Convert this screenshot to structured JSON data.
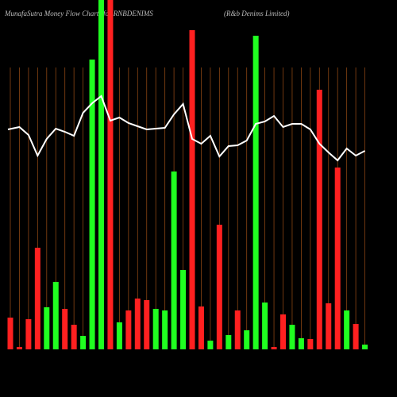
{
  "chart_data": {
    "type": "bar",
    "title": "MunafaSutra  Money Flow  Charts for RNBDENIMS",
    "subtitle": "(R&b Denims Limited)",
    "ylim": [
      0,
      440
    ],
    "grid": true,
    "grid_color": "#8b4513",
    "values": [
      40,
      3,
      38,
      128,
      53,
      85,
      51,
      31,
      17,
      365,
      440,
      440,
      34,
      49,
      64,
      62,
      51,
      49,
      224,
      100,
      402,
      54,
      11,
      157,
      18,
      49,
      24,
      395,
      59,
      3,
      44,
      31,
      14,
      13,
      327,
      58,
      229,
      49,
      32,
      6
    ],
    "colors": [
      "#ff2020",
      "#ff2020",
      "#ff2020",
      "#ff2020",
      "#20ff20",
      "#20ff20",
      "#ff2020",
      "#ff2020",
      "#20ff20",
      "#20ff20",
      "#20ff20",
      "#ff2020",
      "#20ff20",
      "#ff2020",
      "#ff2020",
      "#ff2020",
      "#20ff20",
      "#20ff20",
      "#20ff20",
      "#20ff20",
      "#ff2020",
      "#ff2020",
      "#20ff20",
      "#ff2020",
      "#20ff20",
      "#ff2020",
      "#20ff20",
      "#20ff20",
      "#20ff20",
      "#ff2020",
      "#ff2020",
      "#20ff20",
      "#20ff20",
      "#ff2020",
      "#ff2020",
      "#ff2020",
      "#ff2020",
      "#20ff20",
      "#ff2020",
      "#20ff20"
    ],
    "line": {
      "color": "#ffffff",
      "values": [
        277,
        280,
        270,
        244,
        265,
        278,
        274,
        269,
        298,
        310,
        319,
        288,
        292,
        285,
        281,
        277,
        278,
        279,
        296,
        309,
        265,
        259,
        269,
        243,
        256,
        257,
        263,
        284,
        287,
        294,
        280,
        284,
        284,
        277,
        259,
        248,
        238,
        253,
        244,
        250
      ]
    }
  }
}
